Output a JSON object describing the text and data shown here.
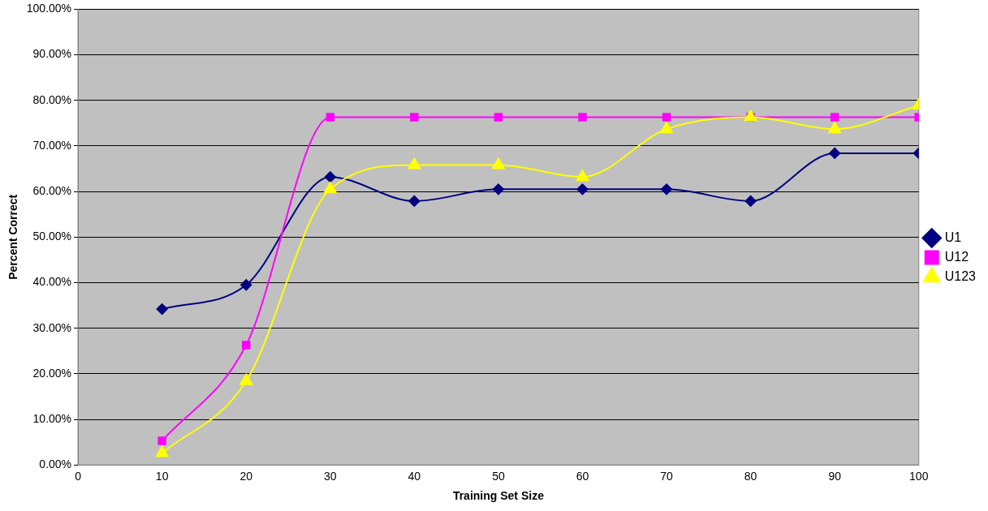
{
  "chart_data": {
    "type": "line",
    "xlabel": "Training Set Size",
    "ylabel": "Percent Correct",
    "x": [
      10,
      20,
      30,
      40,
      50,
      60,
      70,
      80,
      90,
      100
    ],
    "series": [
      {
        "name": "U1",
        "color": "#000080",
        "marker": "diamond",
        "values": [
          34.2,
          39.5,
          63.2,
          57.9,
          60.5,
          60.5,
          60.5,
          57.9,
          68.4,
          68.4
        ]
      },
      {
        "name": "U12",
        "color": "#ff00ff",
        "marker": "square",
        "values": [
          5.3,
          26.3,
          76.3,
          76.3,
          76.3,
          76.3,
          76.3,
          76.3,
          76.3,
          76.3
        ]
      },
      {
        "name": "U123",
        "color": "#ffff00",
        "marker": "triangle",
        "values": [
          2.6,
          18.4,
          60.5,
          65.8,
          65.8,
          63.2,
          73.7,
          76.3,
          73.7,
          78.9
        ]
      }
    ],
    "xlim": [
      0,
      100
    ],
    "xticks": [
      0,
      10,
      20,
      30,
      40,
      50,
      60,
      70,
      80,
      90,
      100
    ],
    "ylim": [
      0,
      100
    ],
    "yticks": [
      {
        "value": 0,
        "label": "0.00%"
      },
      {
        "value": 10,
        "label": "10.00%"
      },
      {
        "value": 20,
        "label": "20.00%"
      },
      {
        "value": 30,
        "label": "30.00%"
      },
      {
        "value": 40,
        "label": "40.00%"
      },
      {
        "value": 50,
        "label": "50.00%"
      },
      {
        "value": 60,
        "label": "60.00%"
      },
      {
        "value": 70,
        "label": "70.00%"
      },
      {
        "value": 80,
        "label": "80.00%"
      },
      {
        "value": 90,
        "label": "90.00%"
      },
      {
        "value": 100,
        "label": "100.00%"
      }
    ],
    "grid": "y",
    "legend": "right"
  }
}
